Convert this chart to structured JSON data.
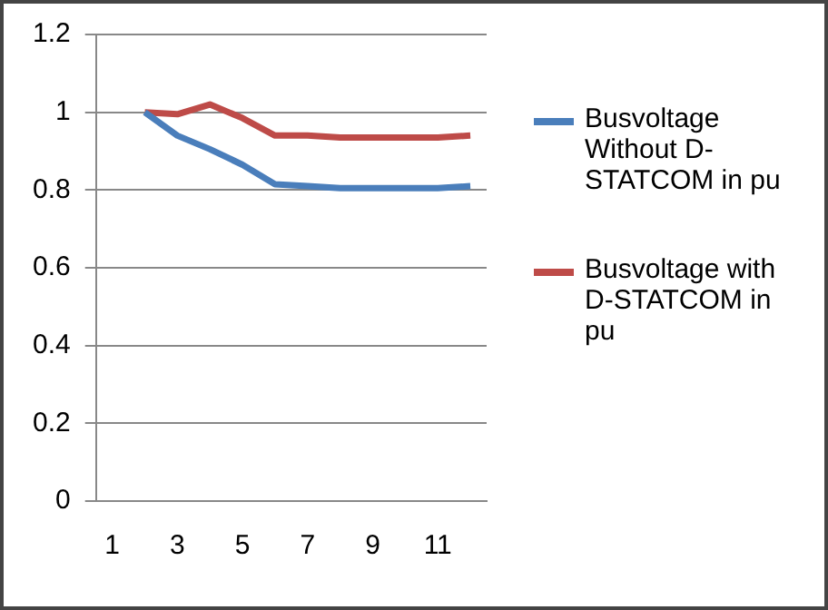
{
  "chart_data": {
    "type": "line",
    "categories": [
      "1",
      null,
      "3",
      null,
      "5",
      null,
      "7",
      null,
      "9",
      null,
      "11",
      null
    ],
    "series": [
      {
        "name": "Busvoltage Without D-STATCOM in pu",
        "color": "#4a7ebb",
        "values": [
          null,
          1.0,
          0.94,
          0.905,
          0.865,
          0.815,
          0.81,
          0.805,
          0.805,
          0.805,
          0.805,
          0.81
        ]
      },
      {
        "name": "Busvoltage with D-STATCOM in pu",
        "color": "#be4b48",
        "values": [
          null,
          1.0,
          0.995,
          1.02,
          0.985,
          0.94,
          0.94,
          0.935,
          0.935,
          0.935,
          0.935,
          0.94
        ]
      }
    ],
    "ylim": [
      0,
      1.2
    ],
    "yticks": [
      0,
      0.2,
      0.4,
      0.6,
      0.8,
      1,
      1.2
    ],
    "grid": "y",
    "legend": "right",
    "marker": "none",
    "line_style": "solid"
  }
}
